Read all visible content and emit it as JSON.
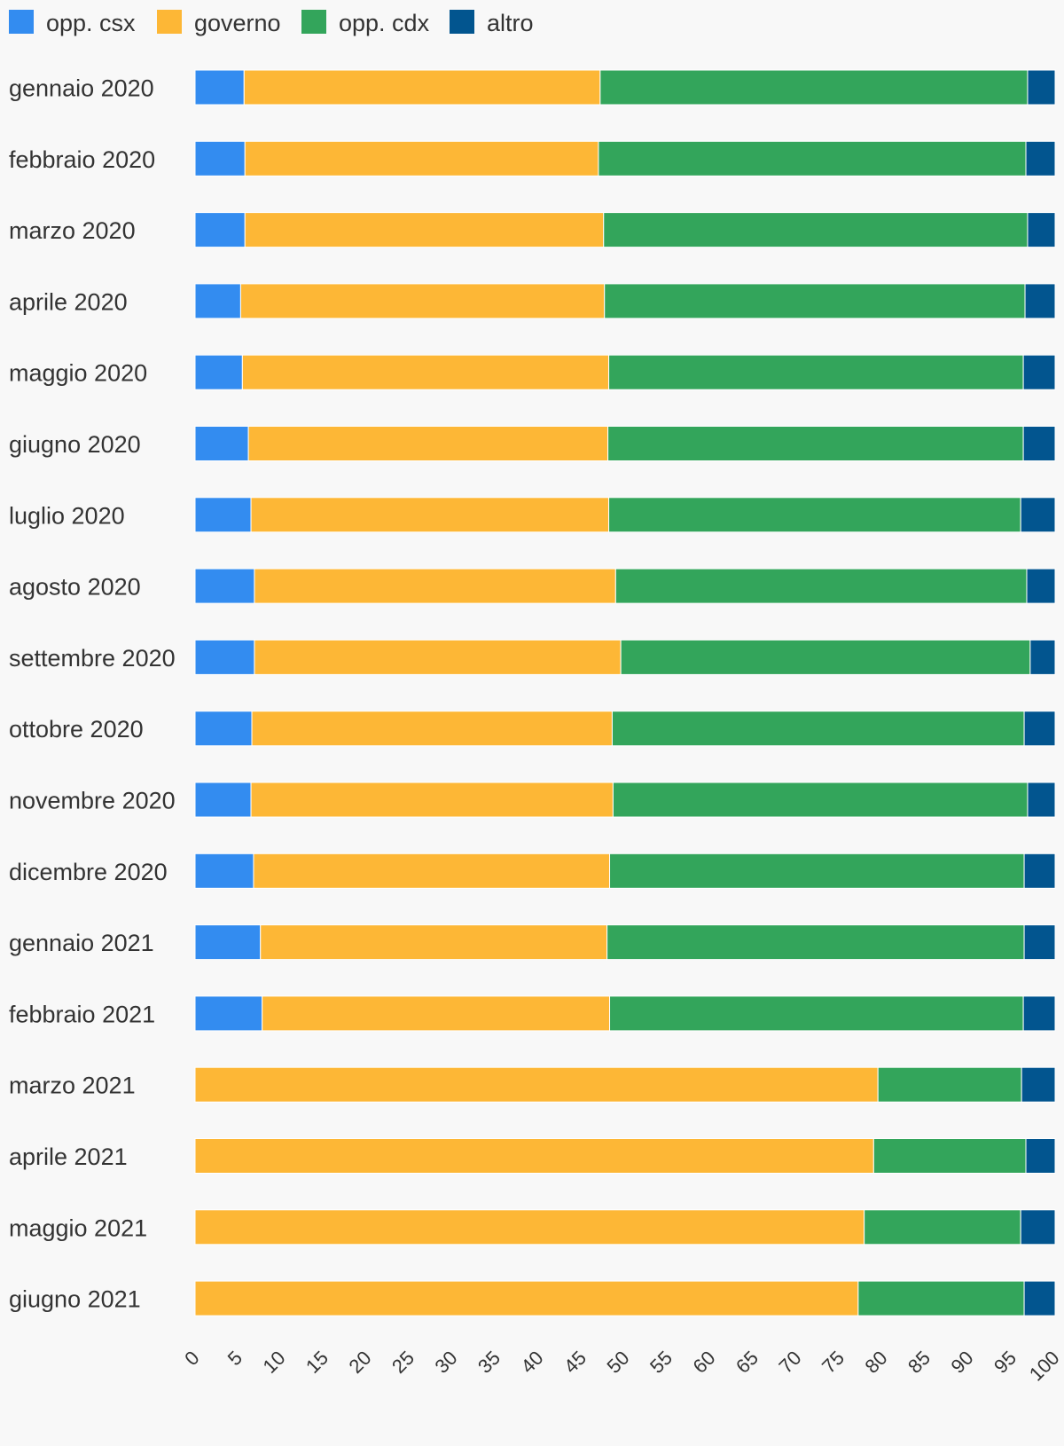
{
  "chart_data": {
    "type": "bar",
    "orientation": "horizontal",
    "stacked": true,
    "grid": false,
    "legend_position": "top-left",
    "xlim": [
      0,
      100
    ],
    "x_ticks": [
      "0",
      "5",
      "10",
      "15",
      "20",
      "25",
      "30",
      "35",
      "40",
      "45",
      "50",
      "55",
      "60",
      "65",
      "70",
      "75",
      "80",
      "85",
      "90",
      "95",
      "100"
    ],
    "categories": [
      "gennaio 2020",
      "febbraio 2020",
      "marzo 2020",
      "aprile 2020",
      "maggio 2020",
      "giugno 2020",
      "luglio 2020",
      "agosto 2020",
      "settembre 2020",
      "ottobre 2020",
      "novembre 2020",
      "dicembre 2020",
      "gennaio 2021",
      "febbraio 2021",
      "marzo 2021",
      "aprile 2021",
      "maggio 2021",
      "giugno 2021"
    ],
    "series": [
      {
        "name": "opp. csx",
        "color": "#338cf0",
        "values": [
          5.7,
          5.8,
          5.8,
          5.3,
          5.5,
          6.2,
          6.5,
          6.9,
          6.9,
          6.6,
          6.5,
          6.8,
          7.6,
          7.8,
          0,
          0,
          0,
          0
        ]
      },
      {
        "name": "governo",
        "color": "#fdb736",
        "values": [
          41.4,
          41.1,
          41.7,
          42.3,
          42.6,
          41.8,
          41.6,
          42.0,
          42.6,
          41.9,
          42.1,
          41.4,
          40.3,
          40.4,
          79.4,
          78.9,
          77.8,
          77.1
        ]
      },
      {
        "name": "opp. cdx",
        "color": "#33a55b",
        "values": [
          49.7,
          49.7,
          49.3,
          48.9,
          48.2,
          48.3,
          47.9,
          47.8,
          47.6,
          47.9,
          48.2,
          48.2,
          48.5,
          48.1,
          16.7,
          17.7,
          18.2,
          19.3
        ]
      },
      {
        "name": "altro",
        "color": "#02558f",
        "values": [
          3.2,
          3.4,
          3.2,
          3.5,
          3.7,
          3.7,
          4.0,
          3.3,
          2.9,
          3.6,
          3.2,
          3.6,
          3.6,
          3.7,
          3.9,
          3.4,
          4.0,
          3.6
        ]
      }
    ]
  }
}
